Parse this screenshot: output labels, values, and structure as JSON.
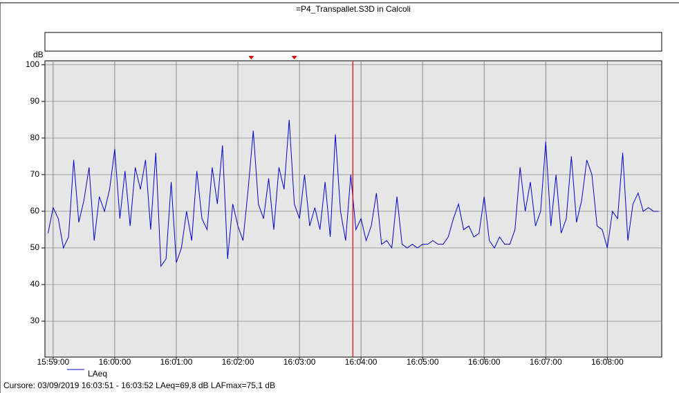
{
  "chart_data": {
    "type": "line",
    "title": "=P4_Transpallet.S3D in Calcoli",
    "ylabel": "dB",
    "x": [
      "15:58:55",
      "15:59:00",
      "15:59:05",
      "15:59:10",
      "15:59:15",
      "15:59:20",
      "15:59:25",
      "15:59:30",
      "15:59:35",
      "15:59:40",
      "15:59:45",
      "15:59:50",
      "15:59:55",
      "16:00:00",
      "16:00:05",
      "16:00:10",
      "16:00:15",
      "16:00:20",
      "16:00:25",
      "16:00:30",
      "16:00:35",
      "16:00:40",
      "16:00:45",
      "16:00:50",
      "16:00:55",
      "16:01:00",
      "16:01:05",
      "16:01:10",
      "16:01:15",
      "16:01:20",
      "16:01:25",
      "16:01:30",
      "16:01:35",
      "16:01:40",
      "16:01:45",
      "16:01:50",
      "16:01:55",
      "16:02:00",
      "16:02:05",
      "16:02:10",
      "16:02:15",
      "16:02:20",
      "16:02:25",
      "16:02:30",
      "16:02:35",
      "16:02:40",
      "16:02:45",
      "16:02:50",
      "16:02:55",
      "16:03:00",
      "16:03:05",
      "16:03:10",
      "16:03:15",
      "16:03:20",
      "16:03:25",
      "16:03:30",
      "16:03:35",
      "16:03:40",
      "16:03:45",
      "16:03:50",
      "16:03:55",
      "16:04:00",
      "16:04:05",
      "16:04:10",
      "16:04:15",
      "16:04:20",
      "16:04:25",
      "16:04:30",
      "16:04:35",
      "16:04:40",
      "16:04:45",
      "16:04:50",
      "16:04:55",
      "16:05:00",
      "16:05:05",
      "16:05:10",
      "16:05:15",
      "16:05:20",
      "16:05:25",
      "16:05:30",
      "16:05:35",
      "16:05:40",
      "16:05:45",
      "16:05:50",
      "16:05:55",
      "16:06:00",
      "16:06:05",
      "16:06:10",
      "16:06:15",
      "16:06:20",
      "16:06:25",
      "16:06:30",
      "16:06:35",
      "16:06:40",
      "16:06:45",
      "16:06:50",
      "16:06:55",
      "16:07:00",
      "16:07:05",
      "16:07:10",
      "16:07:15",
      "16:07:20",
      "16:07:25",
      "16:07:30",
      "16:07:35",
      "16:07:40",
      "16:07:45",
      "16:07:50",
      "16:07:55",
      "16:08:00",
      "16:08:05",
      "16:08:10",
      "16:08:15",
      "16:08:20",
      "16:08:25",
      "16:08:30",
      "16:08:35",
      "16:08:40",
      "16:08:45",
      "16:08:50"
    ],
    "series": [
      {
        "name": "LAeq",
        "color": "#0000cc",
        "values": [
          54,
          61,
          58,
          50,
          53,
          74,
          57,
          63,
          72,
          52,
          64,
          60,
          66,
          77,
          58,
          71,
          56,
          72,
          66,
          74,
          55,
          76,
          45,
          47,
          68,
          46,
          50,
          60,
          52,
          71,
          58,
          55,
          72,
          62,
          78,
          47,
          62,
          56,
          52,
          66,
          82,
          62,
          58,
          69,
          55,
          72,
          66,
          85,
          62,
          58,
          70,
          56,
          61,
          55,
          68,
          53,
          81,
          60,
          52,
          70,
          55,
          58,
          52,
          56,
          65,
          51,
          52,
          50,
          64,
          51,
          50,
          51,
          50,
          51,
          51,
          52,
          51,
          51,
          53,
          58,
          62,
          55,
          56,
          53,
          54,
          64,
          52,
          50,
          53,
          51,
          51,
          55,
          72,
          60,
          68,
          56,
          60,
          79,
          56,
          70,
          54,
          58,
          75,
          57,
          63,
          74,
          70,
          56,
          55,
          50,
          60,
          58,
          76,
          52,
          62,
          65,
          60,
          61,
          60,
          60
        ]
      }
    ],
    "xlim": [
      "15:58:52",
      "16:08:53"
    ],
    "xticks": [
      "15:59:00",
      "16:00:00",
      "16:01:00",
      "16:02:00",
      "16:03:00",
      "16:04:00",
      "16:05:00",
      "16:06:00",
      "16:07:00",
      "16:08:00"
    ],
    "ylim": [
      20.2,
      101.1
    ],
    "yticks": [
      30,
      40,
      50,
      60,
      70,
      80,
      90,
      100
    ],
    "grid": true,
    "cursor": "16:03:52",
    "cursor_color": "#e00000",
    "markers": [
      "16:02:13",
      "16:02:55"
    ],
    "status": "Cursore: 03/09/2019 16:03:51 - 16:03:52  LAeq=69,8 dB  LAFmax=75,1 dB"
  }
}
